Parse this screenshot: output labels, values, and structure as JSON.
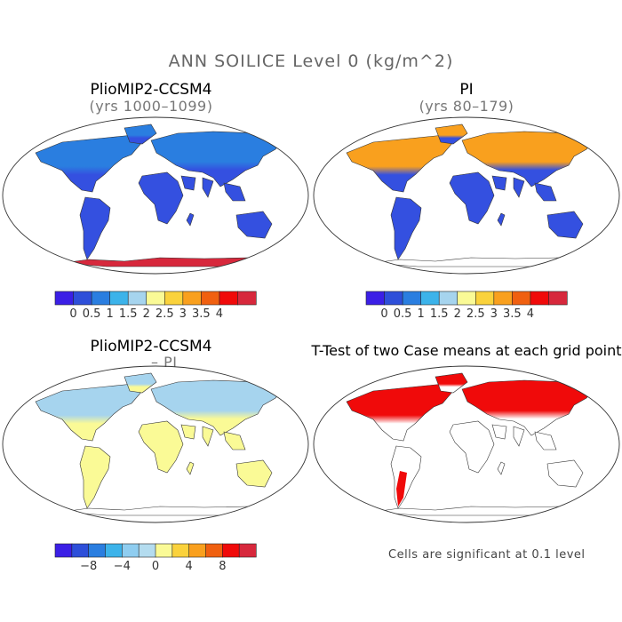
{
  "figure": {
    "title": "ANN SOILICE Level 0 (kg/m^2)"
  },
  "panels": [
    {
      "title": "PlioMIP2-CCSM4",
      "subtitle": "(yrs 1000–1099)"
    },
    {
      "title": "PI",
      "subtitle": "(yrs 80–179)"
    },
    {
      "title": "PlioMIP2-CCSM4",
      "subtitle": "– PI"
    },
    {
      "title": "T-Test of two Case means at each grid point",
      "subtitle": ""
    }
  ],
  "colorbars": {
    "abs": {
      "colors": [
        "#3b1fe6",
        "#2e4fd9",
        "#2a7ee0",
        "#3cb3ea",
        "#a6d4ee",
        "#fafa96",
        "#fad23c",
        "#f9a01e",
        "#f06010",
        "#f00a0a",
        "#d7283c"
      ],
      "labels": [
        "0",
        "0.5",
        "1",
        "1.5",
        "2",
        "2.5",
        "3",
        "3.5",
        "4"
      ]
    },
    "diff": {
      "colors": [
        "#3b1fe6",
        "#2e4fd9",
        "#2a7ee0",
        "#3cb3ea",
        "#8fcdf0",
        "#b4dcef",
        "#fafa96",
        "#fad23c",
        "#f9a01e",
        "#f06010",
        "#f00a0a",
        "#d7283c"
      ],
      "labels": [
        "−8",
        "−4",
        "0",
        "4",
        "8"
      ]
    }
  },
  "significance_note": "Cells are significant at 0.1 level",
  "map_fills": {
    "panel1": {
      "land": "#3450e0",
      "high_latitude": "#2a7ee0",
      "antarctic_edge": "#d7283c"
    },
    "panel2": {
      "land": "#3450e0",
      "high_latitude": "#f9a01e"
    },
    "panel3": {
      "land": "#fafa96",
      "high_latitude": "#a6d4ee"
    },
    "panel4": {
      "land": "#ffffff",
      "high_latitude": "#f00a0a"
    }
  }
}
